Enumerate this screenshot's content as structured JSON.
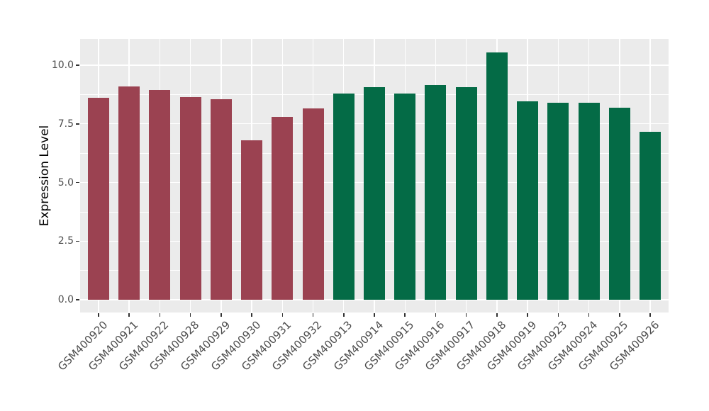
{
  "figure": {
    "background": "#FFFFFF",
    "panel_background": "#EBEBEB",
    "gridline_color": "#FFFFFF",
    "tick_mark_color": "#333333",
    "tick_label_color": "#4D4D4D",
    "axis_title_color": "#000000"
  },
  "chart_data": {
    "type": "bar",
    "title": "",
    "xlabel": "",
    "ylabel": "Expression Level",
    "ylim": [
      -0.55,
      11.12
    ],
    "grid": "major+minor horizontal, major vertical at category centers",
    "legend": "none",
    "y_ticks": [
      0.0,
      2.5,
      5.0,
      7.5,
      10.0
    ],
    "y_tick_labels": [
      "0.0",
      "2.5",
      "5.0",
      "7.5",
      "10.0"
    ],
    "bar_colors": {
      "groupA": "#9B4251",
      "groupB": "#046B46"
    },
    "categories": [
      "GSM400920",
      "GSM400921",
      "GSM400922",
      "GSM400928",
      "GSM400929",
      "GSM400930",
      "GSM400931",
      "GSM400932",
      "GSM400913",
      "GSM400914",
      "GSM400915",
      "GSM400916",
      "GSM400917",
      "GSM400918",
      "GSM400919",
      "GSM400923",
      "GSM400924",
      "GSM400925",
      "GSM400926"
    ],
    "bars": [
      {
        "label": "GSM400920",
        "value": 8.6,
        "group": "groupA"
      },
      {
        "label": "GSM400921",
        "value": 9.1,
        "group": "groupA"
      },
      {
        "label": "GSM400922",
        "value": 8.95,
        "group": "groupA"
      },
      {
        "label": "GSM400928",
        "value": 8.65,
        "group": "groupA"
      },
      {
        "label": "GSM400929",
        "value": 8.55,
        "group": "groupA"
      },
      {
        "label": "GSM400930",
        "value": 6.8,
        "group": "groupA"
      },
      {
        "label": "GSM400931",
        "value": 7.8,
        "group": "groupA"
      },
      {
        "label": "GSM400932",
        "value": 8.15,
        "group": "groupA"
      },
      {
        "label": "GSM400913",
        "value": 8.8,
        "group": "groupB"
      },
      {
        "label": "GSM400914",
        "value": 9.05,
        "group": "groupB"
      },
      {
        "label": "GSM400915",
        "value": 8.8,
        "group": "groupB"
      },
      {
        "label": "GSM400916",
        "value": 9.15,
        "group": "groupB"
      },
      {
        "label": "GSM400917",
        "value": 9.05,
        "group": "groupB"
      },
      {
        "label": "GSM400918",
        "value": 10.55,
        "group": "groupB"
      },
      {
        "label": "GSM400919",
        "value": 8.45,
        "group": "groupB"
      },
      {
        "label": "GSM400923",
        "value": 8.4,
        "group": "groupB"
      },
      {
        "label": "GSM400924",
        "value": 8.4,
        "group": "groupB"
      },
      {
        "label": "GSM400925",
        "value": 8.2,
        "group": "groupB"
      },
      {
        "label": "GSM400926",
        "value": 7.15,
        "group": "groupB"
      }
    ]
  }
}
